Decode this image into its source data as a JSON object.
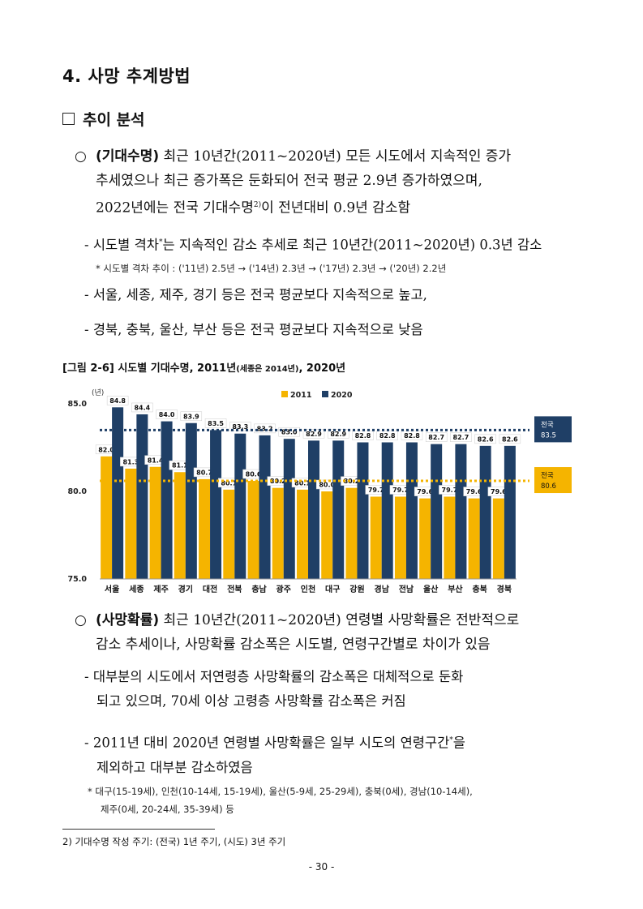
{
  "section_title": "4. 사망 추계방법",
  "subsection_title": "추이 분석",
  "para1": {
    "bullet": "○",
    "bold": "(기대수명)",
    "line1": " 최근 10년간(2011~2020년) 모든 시도에서 지속적인 증가",
    "line2": "추세였으나 최근 증가폭은 둔화되어 전국 평균 2.9년 증가하였으며,",
    "line3a": "2022년에는 전국 기대수명",
    "line3sup": "2)",
    "line3b": "이 전년대비 0.9년 감소함"
  },
  "sub1": {
    "text_a": "- 시도별 격차",
    "star": "*",
    "text_b": "는 지속적인 감소 추세로 최근 10년간(2011~2020년) 0.3년 감소"
  },
  "note1": "* 시도별 격차 추이 : ('11년) 2.5년 → ('14년) 2.3년 → ('17년) 2.3년 → ('20년) 2.2년",
  "sub2": "- 서울, 세종, 제주, 경기 등은 전국 평균보다 지속적으로 높고,",
  "sub3": "- 경북, 충북, 울산, 부산 등은 전국 평균보다 지속적으로 낮음",
  "figure_caption": {
    "main": "[그림 2-6] 시도별 기대수명, 2011년",
    "small": "(세종은 2014년)",
    "tail": ", 2020년"
  },
  "para2": {
    "bullet": "○",
    "bold": "(사망확률)",
    "line1": " 최근 10년간(2011~2020년) 연령별 사망확률은 전반적으로",
    "line2": "감소 추세이나, 사망확률 감소폭은 시도별, 연령구간별로 차이가 있음"
  },
  "sub4": {
    "line1": "- 대부분의 시도에서 저연령층 사망확률의 감소폭은 대체적으로 둔화",
    "line2": "되고 있으며, 70세 이상 고령층 사망확률 감소폭은 커짐"
  },
  "sub5": {
    "line1a": "- 2011년 대비 2020년 연령별 사망확률은 일부 시도의 연령구간",
    "star": "*",
    "line1b": "을",
    "line2": "제외하고 대부분 감소하였음"
  },
  "note2": {
    "line1": "* 대구(15-19세), 인천(10-14세, 15-19세), 울산(5-9세, 25-29세), 충북(0세), 경남(10-14세),",
    "line2": "제주(0세, 20-24세, 35-39세) 등"
  },
  "footnote": "2) 기대수명 작성 주기: (전국) 1년 주기, (시도) 3년 주기",
  "page_number": "- 30 -",
  "chart_data": {
    "type": "bar",
    "unit_label": "(년)",
    "categories": [
      "서울",
      "세종",
      "제주",
      "경기",
      "대전",
      "전북",
      "충남",
      "광주",
      "인천",
      "대구",
      "강원",
      "경남",
      "전남",
      "울산",
      "부산",
      "충북",
      "경북"
    ],
    "series": [
      {
        "name": "2011",
        "color": "#F5B400",
        "values": [
          82.0,
          81.3,
          81.4,
          81.1,
          80.7,
          80.1,
          80.6,
          80.2,
          80.1,
          80.0,
          80.2,
          79.7,
          79.7,
          79.6,
          79.7,
          79.6,
          79.6
        ]
      },
      {
        "name": "2020",
        "color": "#1F3F66",
        "values": [
          84.8,
          84.4,
          84.0,
          83.9,
          83.5,
          83.3,
          83.2,
          83.0,
          82.9,
          82.9,
          82.8,
          82.8,
          82.8,
          82.7,
          82.7,
          82.6,
          82.6
        ]
      }
    ],
    "ylim": [
      75.0,
      85.0
    ],
    "yticks": [
      "75.0",
      "80.0",
      "85.0"
    ],
    "reference_lines": [
      {
        "label": "전국",
        "value": 83.5,
        "value_text": "83.5",
        "color": "#1F3F66"
      },
      {
        "label": "전국",
        "value": 80.6,
        "value_text": "80.6",
        "color": "#F5B400"
      }
    ],
    "legend_position": "top",
    "grid": false
  }
}
